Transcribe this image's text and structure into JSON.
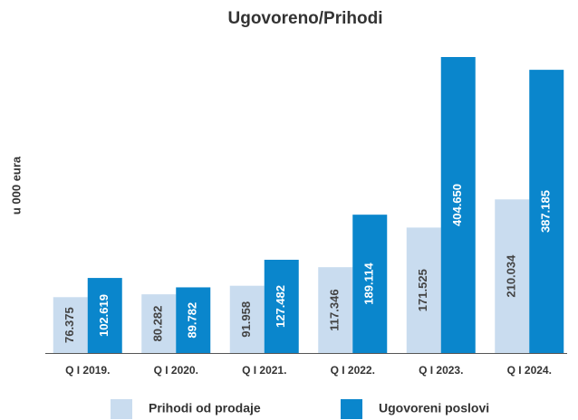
{
  "chart_data": {
    "type": "bar",
    "title": "Ugovoreno/Prihodi",
    "ylabel": "u 000 eura",
    "categories": [
      "Q I 2019.",
      "Q I 2020.",
      "Q I 2021.",
      "Q I 2022.",
      "Q I 2023.",
      "Q I 2024."
    ],
    "series": [
      {
        "name": "Prihodi od prodaje",
        "color": "#c9dcef",
        "values": [
          76375,
          80282,
          91958,
          117346,
          171525,
          210034
        ],
        "value_labels": [
          "76.375",
          "80.282",
          "91.958",
          "117.346",
          "171.525",
          "210.034"
        ]
      },
      {
        "name": "Ugovoreni poslovi",
        "color": "#0a86cc",
        "values": [
          102619,
          89782,
          127482,
          189114,
          404650,
          387185
        ],
        "value_labels": [
          "102.619",
          "89.782",
          "127.482",
          "189.114",
          "404.650",
          "387.185"
        ]
      }
    ]
  }
}
